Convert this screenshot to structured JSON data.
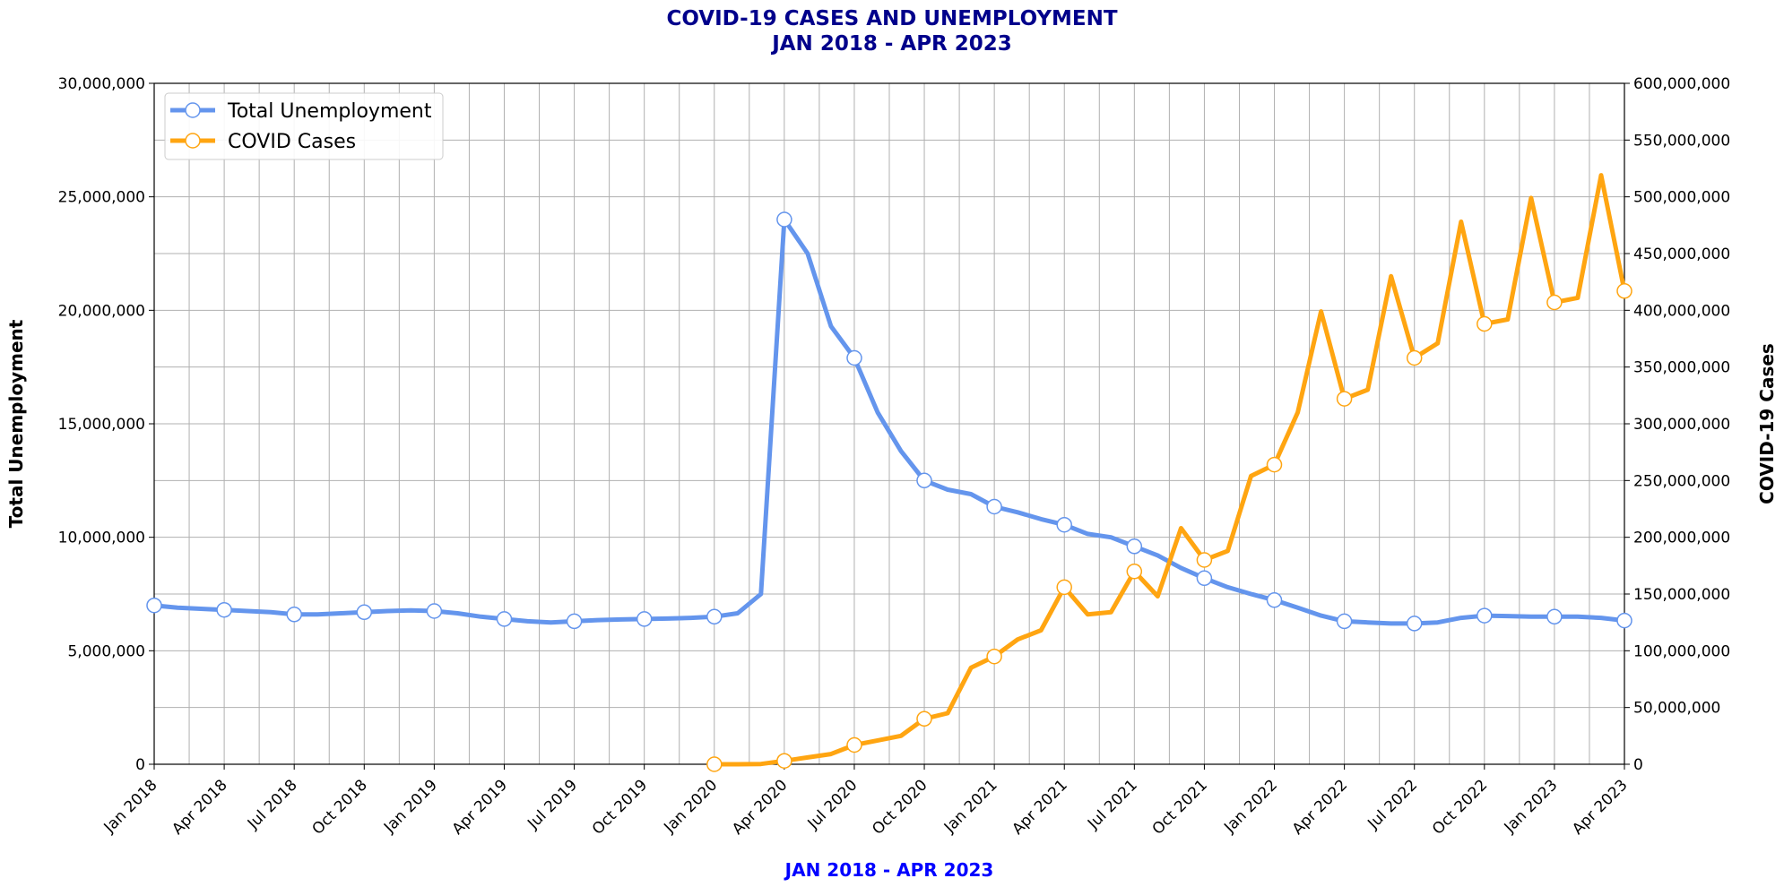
{
  "chart_data": {
    "type": "line",
    "title_line1": "COVID-19 CASES AND UNEMPLOYMENT",
    "title_line2": "JAN 2018 - APR 2023",
    "xlabel": "JAN 2018 - APR 2023",
    "ylabel_left": "Total Unemployment",
    "ylabel_right": "COVID-19 Cases",
    "x_range": [
      "2018-01",
      "2023-04"
    ],
    "ylim_left": [
      0,
      30000000
    ],
    "ylim_right": [
      0,
      600000000
    ],
    "grid": true,
    "legend_position": "top-left",
    "x_ticks": [
      "Jan 2018",
      "Apr 2018",
      "Jul 2018",
      "Oct 2018",
      "Jan 2019",
      "Apr 2019",
      "Jul 2019",
      "Oct 2019",
      "Jan 2020",
      "Apr 2020",
      "Jul 2020",
      "Oct 2020",
      "Jan 2021",
      "Apr 2021",
      "Jul 2021",
      "Oct 2021",
      "Jan 2022",
      "Apr 2022",
      "Jul 2022",
      "Oct 2022",
      "Jan 2023",
      "Apr 2023"
    ],
    "y_ticks_left": [
      "0",
      "5,000,000",
      "10,000,000",
      "15,000,000",
      "20,000,000",
      "25,000,000",
      "30,000,000"
    ],
    "y_ticks_right": [
      "0",
      "50,000,000",
      "100,000,000",
      "150,000,000",
      "200,000,000",
      "250,000,000",
      "300,000,000",
      "350,000,000",
      "400,000,000",
      "450,000,000",
      "500,000,000",
      "550,000,000",
      "600,000,000"
    ],
    "series": [
      {
        "name": "Total Unemployment",
        "axis": "left",
        "color": "#6495ed",
        "start": "2018-01",
        "values": [
          7000000,
          6900000,
          6850000,
          6800000,
          6750000,
          6700000,
          6600000,
          6600000,
          6650000,
          6700000,
          6750000,
          6780000,
          6750000,
          6650000,
          6500000,
          6400000,
          6300000,
          6250000,
          6300000,
          6350000,
          6380000,
          6400000,
          6420000,
          6450000,
          6500000,
          6650000,
          7500000,
          24000000,
          22500000,
          19300000,
          17900000,
          15500000,
          13800000,
          12500000,
          12100000,
          11900000,
          11350000,
          11100000,
          10800000,
          10550000,
          10150000,
          10000000,
          9600000,
          9200000,
          8650000,
          8200000,
          7800000,
          7500000,
          7230000,
          6900000,
          6550000,
          6300000,
          6250000,
          6200000,
          6200000,
          6250000,
          6450000,
          6550000,
          6530000,
          6500000,
          6500000,
          6500000,
          6450000,
          6330000
        ]
      },
      {
        "name": "COVID Cases",
        "axis": "right",
        "color": "#ffa511",
        "start": "2020-01",
        "values": [
          0,
          0,
          200000,
          3000000,
          6000000,
          9000000,
          17000000,
          21000000,
          25000000,
          40000000,
          45000000,
          85000000,
          95000000,
          110000000,
          118000000,
          156000000,
          132000000,
          134000000,
          170000000,
          148000000,
          208000000,
          180000000,
          188000000,
          254000000,
          264000000,
          310000000,
          399000000,
          322000000,
          330000000,
          430000000,
          358000000,
          371000000,
          478000000,
          388000000,
          392000000,
          499000000,
          407000000,
          411000000,
          519000000,
          417000000
        ]
      }
    ]
  }
}
